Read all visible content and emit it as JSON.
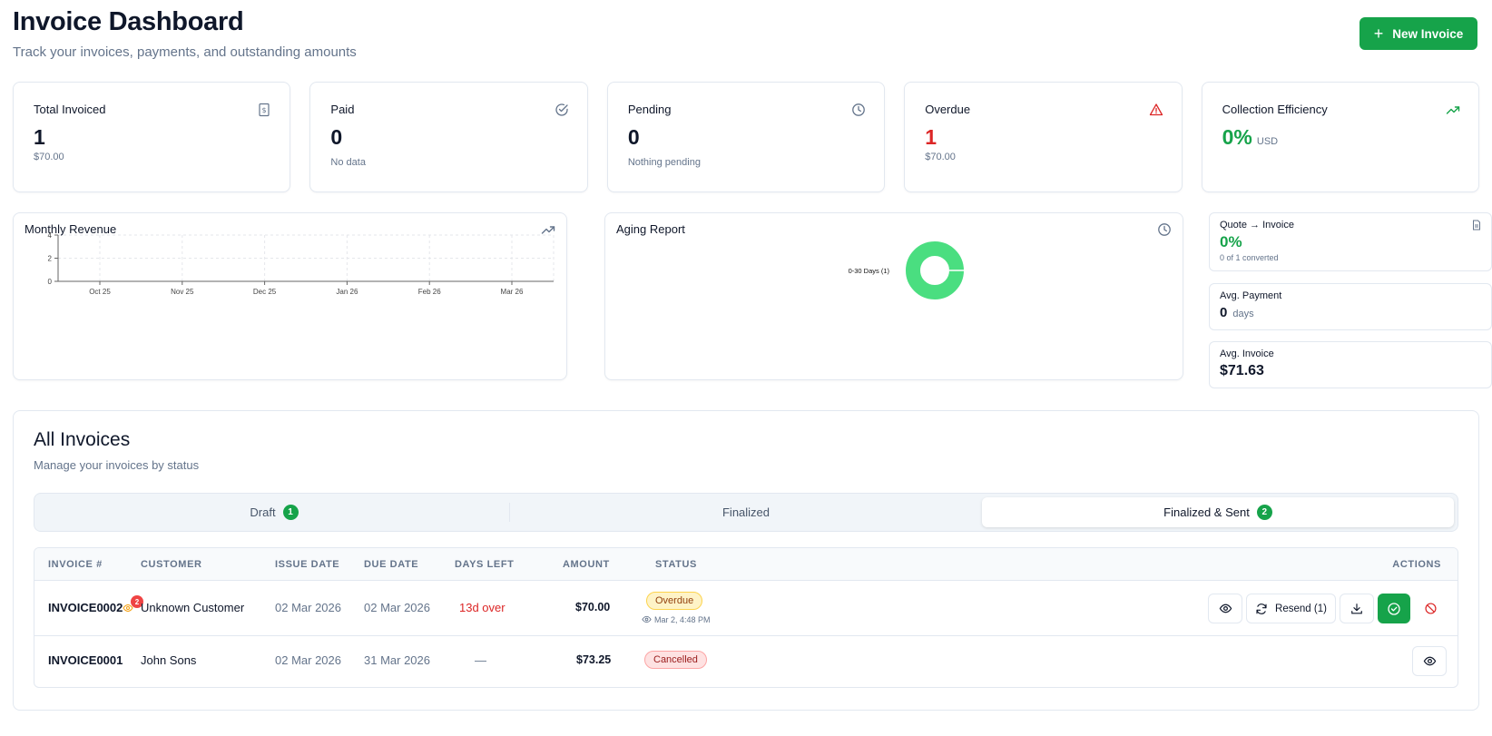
{
  "header": {
    "title": "Invoice Dashboard",
    "subtitle": "Track your invoices, payments, and outstanding amounts",
    "new_invoice_label": "New Invoice"
  },
  "stats": {
    "total": {
      "label": "Total Invoiced",
      "value": "1",
      "sub": "$70.00"
    },
    "paid": {
      "label": "Paid",
      "value": "0",
      "sub": "No data"
    },
    "pending": {
      "label": "Pending",
      "value": "0",
      "sub": "Nothing pending"
    },
    "overdue": {
      "label": "Overdue",
      "value": "1",
      "sub": "$70.00"
    },
    "efficiency": {
      "label": "Collection Efficiency",
      "value": "0%",
      "unit": "USD"
    }
  },
  "revenue": {
    "title": "Monthly Revenue",
    "y_ticks": [
      "4",
      "2",
      "0"
    ],
    "x_ticks": [
      "Oct 25",
      "Nov 25",
      "Dec 25",
      "Jan 26",
      "Feb 26",
      "Mar 26"
    ]
  },
  "aging": {
    "title": "Aging Report",
    "slice_label": "0-30 Days (1)"
  },
  "chart_data": [
    {
      "type": "line",
      "title": "Monthly Revenue",
      "categories": [
        "Oct 25",
        "Nov 25",
        "Dec 25",
        "Jan 26",
        "Feb 26",
        "Mar 26"
      ],
      "series": [
        {
          "values": [
            0,
            0,
            0,
            0,
            0,
            0
          ]
        }
      ],
      "ylim": [
        0,
        4
      ],
      "grid": true
    },
    {
      "type": "pie",
      "title": "Aging Report",
      "labels": [
        "0-30 Days (1)"
      ],
      "values": [
        1
      ],
      "colors": [
        "#4ade80"
      ]
    }
  ],
  "kpis": {
    "quote": {
      "label": "Quote → Invoice",
      "value": "0%",
      "sub": "0 of 1 converted"
    },
    "avg_payment": {
      "label": "Avg. Payment",
      "value": "0",
      "unit": "days"
    },
    "avg_invoice": {
      "label": "Avg. Invoice",
      "value": "$71.63"
    }
  },
  "invoices": {
    "title": "All Invoices",
    "subtitle": "Manage your invoices by status",
    "tabs": [
      {
        "label": "Draft",
        "count": "1"
      },
      {
        "label": "Finalized"
      },
      {
        "label": "Finalized & Sent",
        "count": "2"
      }
    ],
    "columns": [
      "INVOICE #",
      "CUSTOMER",
      "ISSUE DATE",
      "DUE DATE",
      "DAYS LEFT",
      "AMOUNT",
      "STATUS",
      "ACTIONS"
    ],
    "rows": [
      {
        "number": "INVOICE0002",
        "views": "2",
        "customer": "Unknown Customer",
        "issue": "02 Mar 2026",
        "due": "02 Mar 2026",
        "days": "13d over",
        "amount": "$70.00",
        "status": "Overdue",
        "viewed": "Mar 2, 4:48 PM",
        "resend_label": "Resend (1)"
      },
      {
        "number": "INVOICE0001",
        "customer": "John Sons",
        "issue": "02 Mar 2026",
        "due": "31 Mar 2026",
        "days": "—",
        "amount": "$73.25",
        "status": "Cancelled"
      }
    ]
  },
  "colors": {
    "accent": "#16a34a",
    "danger": "#dc2626",
    "donut": "#4ade80"
  }
}
